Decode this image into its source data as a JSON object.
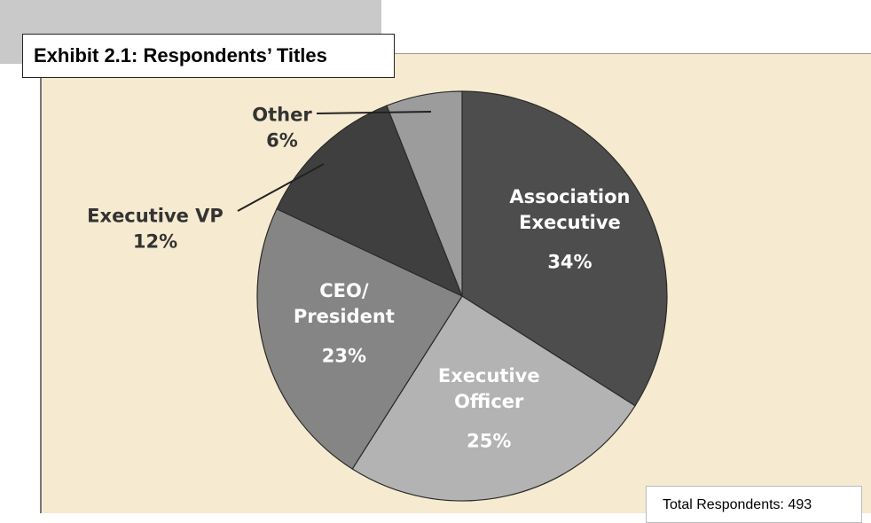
{
  "chart_data": {
    "type": "pie",
    "title": "Exhibit 2.1: Respondents’ Titles",
    "categories": [
      "Association Executive",
      "Executive Officer",
      "CEO/ President",
      "Executive VP",
      "Other"
    ],
    "values": [
      34,
      25,
      23,
      12,
      6
    ],
    "value_labels": [
      "34%",
      "25%",
      "23%",
      "12%",
      "6%"
    ],
    "colors": [
      "#4d4d4d",
      "#b3b3b3",
      "#858585",
      "#3f3f3f",
      "#9c9c9c"
    ],
    "note": "Total Respondents: 493"
  }
}
